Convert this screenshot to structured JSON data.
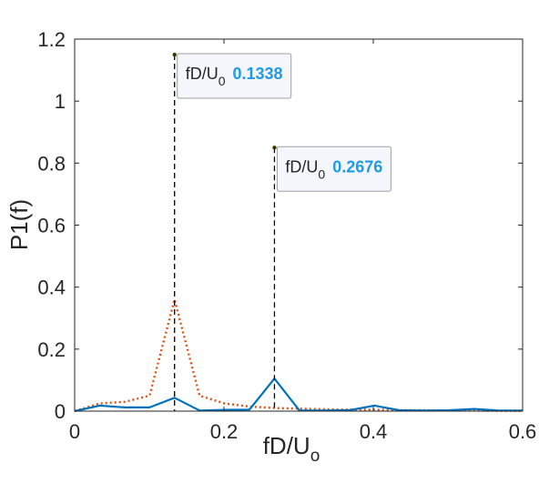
{
  "chart_data": {
    "type": "line",
    "title": "",
    "xlabel": {
      "base": "fD/U",
      "sub": "o"
    },
    "ylabel": "P1(f)",
    "xlim": [
      0,
      0.6
    ],
    "ylim": [
      0,
      1.2
    ],
    "xticks": [
      0,
      0.2,
      0.4,
      0.6
    ],
    "xtick_labels": [
      "0",
      "0.2",
      "0.4",
      "0.6"
    ],
    "yticks": [
      0,
      0.2,
      0.4,
      0.6,
      0.8,
      1,
      1.2
    ],
    "ytick_labels": [
      "0",
      "0.2",
      "0.4",
      "0.6",
      "0.8",
      "1",
      "1.2"
    ],
    "grid": false,
    "series": [
      {
        "style": "dotted",
        "color": "#D95319",
        "x": [
          0,
          0.0335,
          0.0669,
          0.1004,
          0.1338,
          0.1673,
          0.2007,
          0.2342,
          0.2676,
          0.3011,
          0.3345,
          0.368,
          0.4014,
          0.4349,
          0.4683,
          0.5018,
          0.5352,
          0.5687,
          0.6
        ],
        "y": [
          0,
          0.025,
          0.03,
          0.05,
          0.36,
          0.05,
          0.025,
          0.015,
          0.01,
          0.008,
          0.006,
          0.005,
          0.005,
          0.003,
          0.003,
          0.002,
          0.002,
          0.001,
          0.001
        ]
      },
      {
        "style": "solid",
        "color": "#0072BD",
        "x": [
          0,
          0.0335,
          0.0669,
          0.1004,
          0.1338,
          0.1673,
          0.2007,
          0.2342,
          0.2676,
          0.3011,
          0.3345,
          0.368,
          0.4014,
          0.4349,
          0.4683,
          0.5018,
          0.5352,
          0.5687,
          0.6
        ],
        "y": [
          0,
          0.018,
          0.012,
          0.012,
          0.043,
          0.002,
          0.004,
          0.005,
          0.105,
          0.002,
          0.002,
          0.003,
          0.018,
          0.003,
          0.002,
          0.003,
          0.007,
          0.002,
          0.002
        ]
      }
    ],
    "markers": [
      {
        "x": 0.1338,
        "y": 1.15,
        "label": "fD/U",
        "sub": "0",
        "value": "0.1338"
      },
      {
        "x": 0.2676,
        "y": 0.85,
        "label": "fD/U",
        "sub": "0",
        "value": "0.2676"
      }
    ],
    "colors": {
      "axis": "#262626",
      "tip_value": "#1E9BE6",
      "tip_bg": "#F5F6FB",
      "tip_border": "#A0A0A0"
    }
  }
}
